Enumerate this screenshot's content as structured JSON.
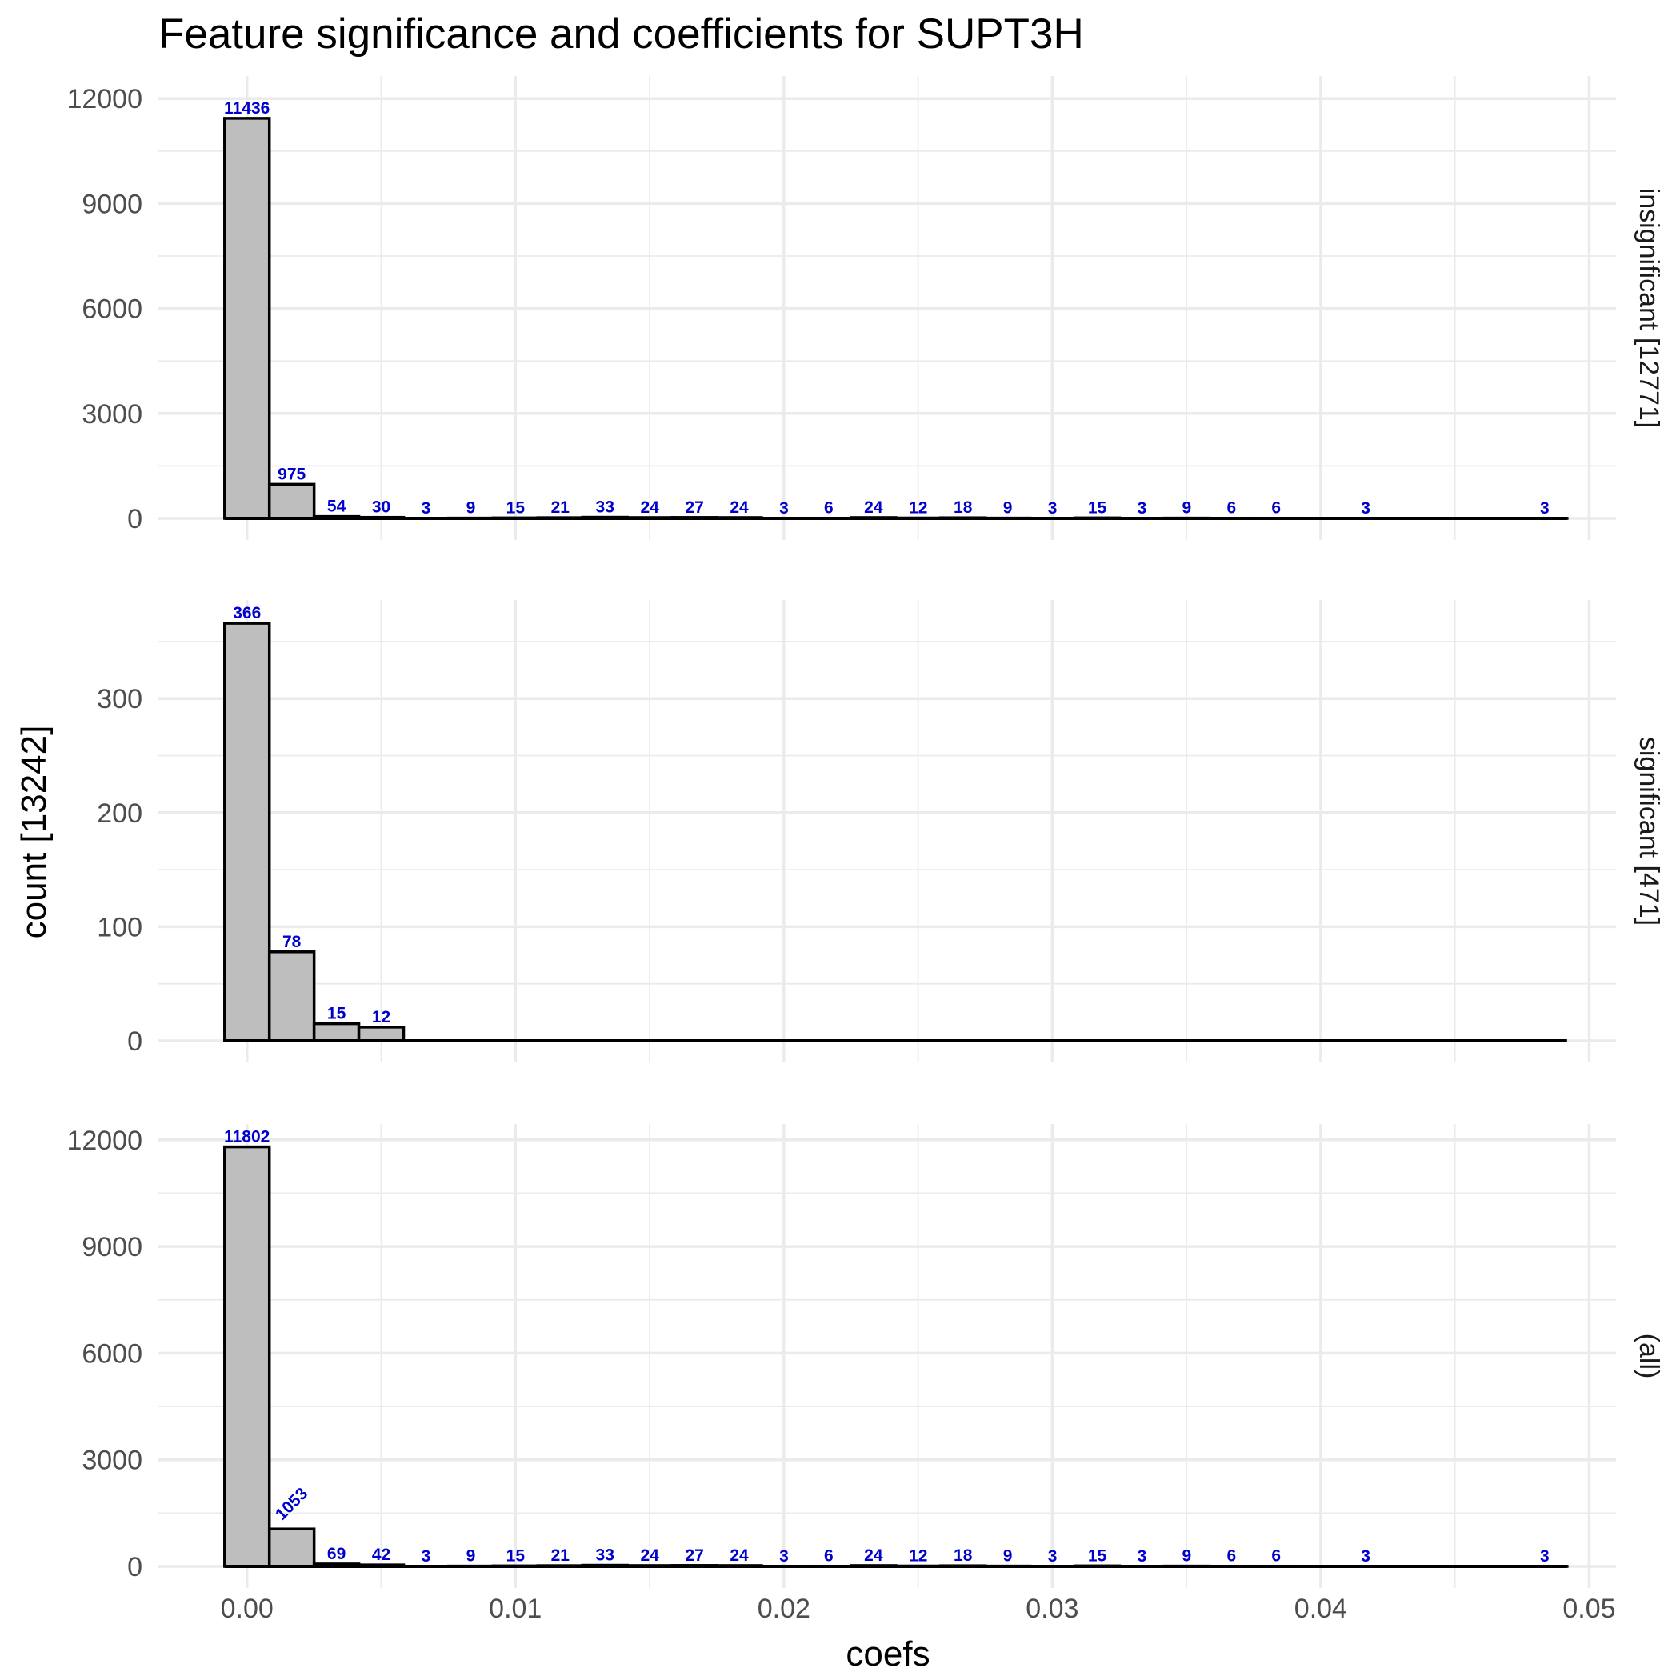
{
  "chart_data": {
    "type": "bar",
    "title": "Feature significance and coefficients for SUPT3H",
    "xlabel": "coefs",
    "ylabel": "count [13242]",
    "xlim": [
      -0.0033,
      0.051
    ],
    "x_ticks": [
      0.0,
      0.01,
      0.02,
      0.03,
      0.04,
      0.05
    ],
    "x_tick_labels": [
      "0.00",
      "0.01",
      "0.02",
      "0.03",
      "0.04",
      "0.05"
    ],
    "bin_width": 0.001667,
    "bin_start": -0.000833,
    "grid": true,
    "colors": {
      "bar_fill": "#bebebe",
      "bar_outline": "#000000",
      "count_label": "#0000cc",
      "grid": "#ebebeb"
    },
    "panels": [
      {
        "strip_label": "insignificant [12771]",
        "ylim": [
          0,
          12600
        ],
        "y_ticks": [
          0,
          3000,
          6000,
          9000,
          12000
        ],
        "y_tick_labels": [
          "0",
          "3000",
          "6000",
          "9000",
          "12000"
        ],
        "values": [
          11436,
          975,
          54,
          30,
          3,
          9,
          15,
          21,
          33,
          24,
          27,
          24,
          3,
          6,
          24,
          12,
          18,
          9,
          3,
          15,
          3,
          9,
          6,
          6,
          0,
          3,
          0,
          0,
          0,
          3
        ]
      },
      {
        "strip_label": "significant [471]",
        "ylim": [
          0,
          385
        ],
        "y_ticks": [
          0,
          100,
          200,
          300
        ],
        "y_tick_labels": [
          "0",
          "100",
          "200",
          "300"
        ],
        "values": [
          366,
          78,
          15,
          12,
          0,
          0,
          0,
          0,
          0,
          0,
          0,
          0,
          0,
          0,
          0,
          0,
          0,
          0,
          0,
          0,
          0,
          0,
          0,
          0,
          0,
          0,
          0,
          0,
          0,
          0
        ]
      },
      {
        "strip_label": "(all)",
        "ylim": [
          0,
          12400
        ],
        "y_ticks": [
          0,
          3000,
          6000,
          9000,
          12000
        ],
        "y_tick_labels": [
          "0",
          "3000",
          "6000",
          "9000",
          "12000"
        ],
        "values": [
          11802,
          1053,
          69,
          42,
          3,
          9,
          15,
          21,
          33,
          24,
          27,
          24,
          3,
          6,
          24,
          12,
          18,
          9,
          3,
          15,
          3,
          9,
          6,
          6,
          0,
          3,
          0,
          0,
          0,
          3
        ]
      }
    ]
  }
}
